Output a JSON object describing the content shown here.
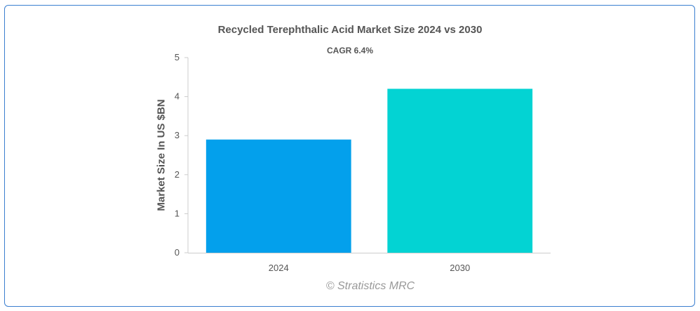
{
  "chart_data": {
    "type": "bar",
    "title": "Recycled Terephthalic Acid Market Size 2024 vs 2030",
    "subtitle": "CAGR 6.4%",
    "xlabel": "",
    "ylabel": "Market Size In US $BN",
    "categories": [
      "2024",
      "2030"
    ],
    "values": [
      2.9,
      4.2
    ],
    "bar_colors": [
      "#03a0ec",
      "#03d3d3"
    ],
    "ylim": [
      0,
      5
    ],
    "yticks": [
      0,
      1,
      2,
      3,
      4,
      5
    ],
    "grid": false,
    "legend": "none"
  },
  "watermark": "© Stratistics MRC",
  "colors": {
    "border": "#3b7fd0",
    "text": "#555555",
    "axis": "#cccccc"
  }
}
